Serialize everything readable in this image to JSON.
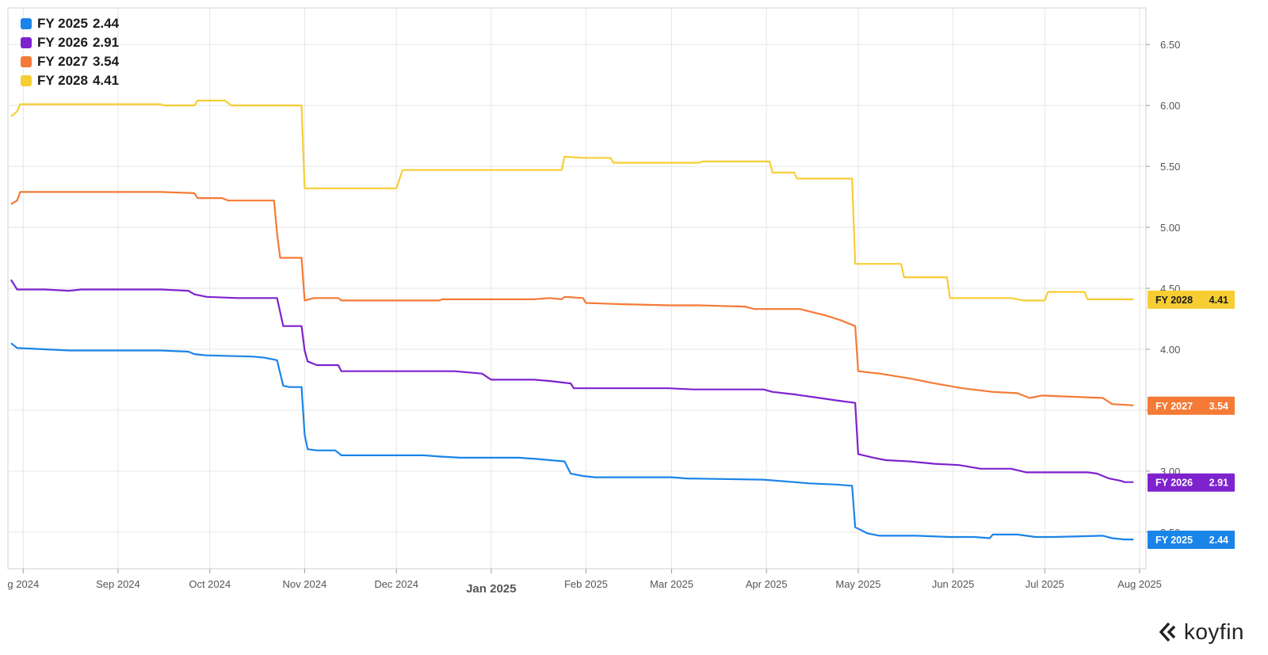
{
  "colors": {
    "FY 2025": "#1a84e8",
    "FY 2026": "#7e22ce",
    "FY 2027": "#f47a35",
    "FY 2028": "#f7cd34",
    "grid": "#e6e6e6",
    "axis_text": "#555555"
  },
  "brand": {
    "name": "koyfin",
    "icon": "koyfin-logo-icon"
  },
  "chart_data": {
    "type": "line",
    "title": "",
    "xlabel": "",
    "ylabel": "",
    "x_range": [
      "2024-07-27",
      "2025-08-01"
    ],
    "ylim": [
      2.2,
      6.8
    ],
    "y_ticks": [
      "2.50",
      "3.00",
      "3.50",
      "4.00",
      "4.50",
      "5.00",
      "5.50",
      "6.00",
      "6.50"
    ],
    "x_ticks": [
      {
        "label": "g 2024",
        "date": "2024-08-01"
      },
      {
        "label": "Sep 2024",
        "date": "2024-09-01"
      },
      {
        "label": "Oct 2024",
        "date": "2024-10-01"
      },
      {
        "label": "Nov 2024",
        "date": "2024-11-01"
      },
      {
        "label": "Dec 2024",
        "date": "2024-12-01"
      },
      {
        "label": "Jan 2025",
        "date": "2025-01-01"
      },
      {
        "label": "Feb 2025",
        "date": "2025-02-01"
      },
      {
        "label": "Mar 2025",
        "date": "2025-03-01"
      },
      {
        "label": "Apr 2025",
        "date": "2025-04-01"
      },
      {
        "label": "May 2025",
        "date": "2025-05-01"
      },
      {
        "label": "Jun 2025",
        "date": "2025-06-01"
      },
      {
        "label": "Jul 2025",
        "date": "2025-07-01"
      },
      {
        "label": "Aug 2025",
        "date": "2025-08-01"
      }
    ],
    "legend_position": "top-left",
    "grid": true,
    "series": [
      {
        "name": "FY 2025",
        "last": "2.44",
        "points": [
          [
            "2024-07-28",
            4.05
          ],
          [
            "2024-07-30",
            4.01
          ],
          [
            "2024-08-08",
            4.0
          ],
          [
            "2024-08-16",
            3.99
          ],
          [
            "2024-09-15",
            3.99
          ],
          [
            "2024-09-24",
            3.98
          ],
          [
            "2024-09-26",
            3.96
          ],
          [
            "2024-09-30",
            3.95
          ],
          [
            "2024-10-15",
            3.94
          ],
          [
            "2024-10-19",
            3.93
          ],
          [
            "2024-10-23",
            3.91
          ],
          [
            "2024-10-25",
            3.7
          ],
          [
            "2024-10-27",
            3.69
          ],
          [
            "2024-10-31",
            3.69
          ],
          [
            "2024-11-01",
            3.3
          ],
          [
            "2024-11-02",
            3.18
          ],
          [
            "2024-11-05",
            3.17
          ],
          [
            "2024-11-11",
            3.17
          ],
          [
            "2024-11-13",
            3.13
          ],
          [
            "2024-12-10",
            3.13
          ],
          [
            "2024-12-15",
            3.12
          ],
          [
            "2024-12-22",
            3.11
          ],
          [
            "2025-01-10",
            3.11
          ],
          [
            "2025-01-16",
            3.1
          ],
          [
            "2025-01-25",
            3.08
          ],
          [
            "2025-01-27",
            2.98
          ],
          [
            "2025-01-31",
            2.96
          ],
          [
            "2025-02-04",
            2.95
          ],
          [
            "2025-03-01",
            2.95
          ],
          [
            "2025-03-06",
            2.94
          ],
          [
            "2025-03-31",
            2.93
          ],
          [
            "2025-04-10",
            2.91
          ],
          [
            "2025-04-15",
            2.9
          ],
          [
            "2025-04-24",
            2.89
          ],
          [
            "2025-04-29",
            2.88
          ],
          [
            "2025-04-30",
            2.54
          ],
          [
            "2025-05-04",
            2.49
          ],
          [
            "2025-05-08",
            2.47
          ],
          [
            "2025-05-20",
            2.47
          ],
          [
            "2025-05-31",
            2.46
          ],
          [
            "2025-06-08",
            2.46
          ],
          [
            "2025-06-13",
            2.45
          ],
          [
            "2025-06-14",
            2.48
          ],
          [
            "2025-06-22",
            2.48
          ],
          [
            "2025-06-28",
            2.46
          ],
          [
            "2025-07-04",
            2.46
          ],
          [
            "2025-07-20",
            2.47
          ],
          [
            "2025-07-23",
            2.45
          ],
          [
            "2025-07-27",
            2.44
          ],
          [
            "2025-07-30",
            2.44
          ]
        ]
      },
      {
        "name": "FY 2026",
        "last": "2.91",
        "points": [
          [
            "2024-07-28",
            4.57
          ],
          [
            "2024-07-30",
            4.49
          ],
          [
            "2024-08-08",
            4.49
          ],
          [
            "2024-08-16",
            4.48
          ],
          [
            "2024-08-20",
            4.49
          ],
          [
            "2024-09-15",
            4.49
          ],
          [
            "2024-09-24",
            4.48
          ],
          [
            "2024-09-26",
            4.45
          ],
          [
            "2024-09-30",
            4.43
          ],
          [
            "2024-10-10",
            4.42
          ],
          [
            "2024-10-23",
            4.42
          ],
          [
            "2024-10-25",
            4.19
          ],
          [
            "2024-10-31",
            4.19
          ],
          [
            "2024-11-01",
            3.99
          ],
          [
            "2024-11-02",
            3.9
          ],
          [
            "2024-11-05",
            3.87
          ],
          [
            "2024-11-12",
            3.87
          ],
          [
            "2024-11-13",
            3.82
          ],
          [
            "2024-12-01",
            3.82
          ],
          [
            "2024-12-20",
            3.82
          ],
          [
            "2024-12-29",
            3.8
          ],
          [
            "2025-01-01",
            3.75
          ],
          [
            "2025-01-15",
            3.75
          ],
          [
            "2025-01-20",
            3.74
          ],
          [
            "2025-01-27",
            3.72
          ],
          [
            "2025-01-28",
            3.68
          ],
          [
            "2025-02-28",
            3.68
          ],
          [
            "2025-03-08",
            3.67
          ],
          [
            "2025-03-31",
            3.67
          ],
          [
            "2025-04-03",
            3.65
          ],
          [
            "2025-04-10",
            3.63
          ],
          [
            "2025-04-24",
            3.58
          ],
          [
            "2025-04-30",
            3.56
          ],
          [
            "2025-05-01",
            3.14
          ],
          [
            "2025-05-06",
            3.11
          ],
          [
            "2025-05-10",
            3.09
          ],
          [
            "2025-05-18",
            3.08
          ],
          [
            "2025-05-26",
            3.06
          ],
          [
            "2025-06-03",
            3.05
          ],
          [
            "2025-06-10",
            3.02
          ],
          [
            "2025-06-20",
            3.02
          ],
          [
            "2025-06-25",
            2.99
          ],
          [
            "2025-07-03",
            2.99
          ],
          [
            "2025-07-15",
            2.99
          ],
          [
            "2025-07-18",
            2.98
          ],
          [
            "2025-07-22",
            2.94
          ],
          [
            "2025-07-26",
            2.92
          ],
          [
            "2025-07-27",
            2.91
          ],
          [
            "2025-07-30",
            2.91
          ]
        ]
      },
      {
        "name": "FY 2027",
        "last": "3.54",
        "points": [
          [
            "2024-07-28",
            5.19
          ],
          [
            "2024-07-30",
            5.22
          ],
          [
            "2024-07-31",
            5.29
          ],
          [
            "2024-09-15",
            5.29
          ],
          [
            "2024-09-26",
            5.28
          ],
          [
            "2024-09-27",
            5.24
          ],
          [
            "2024-10-05",
            5.24
          ],
          [
            "2024-10-07",
            5.22
          ],
          [
            "2024-10-22",
            5.22
          ],
          [
            "2024-10-23",
            4.95
          ],
          [
            "2024-10-24",
            4.75
          ],
          [
            "2024-10-31",
            4.75
          ],
          [
            "2024-11-01",
            4.4
          ],
          [
            "2024-11-04",
            4.42
          ],
          [
            "2024-11-12",
            4.42
          ],
          [
            "2024-11-13",
            4.4
          ],
          [
            "2024-12-15",
            4.4
          ],
          [
            "2024-12-16",
            4.41
          ],
          [
            "2025-01-15",
            4.41
          ],
          [
            "2025-01-20",
            4.42
          ],
          [
            "2025-01-24",
            4.41
          ],
          [
            "2025-01-25",
            4.43
          ],
          [
            "2025-01-31",
            4.42
          ],
          [
            "2025-02-01",
            4.38
          ],
          [
            "2025-02-12",
            4.37
          ],
          [
            "2025-02-28",
            4.36
          ],
          [
            "2025-03-10",
            4.36
          ],
          [
            "2025-03-25",
            4.35
          ],
          [
            "2025-03-28",
            4.33
          ],
          [
            "2025-04-12",
            4.33
          ],
          [
            "2025-04-15",
            4.31
          ],
          [
            "2025-04-20",
            4.28
          ],
          [
            "2025-04-25",
            4.24
          ],
          [
            "2025-04-30",
            4.19
          ],
          [
            "2025-05-01",
            3.82
          ],
          [
            "2025-05-08",
            3.8
          ],
          [
            "2025-05-18",
            3.76
          ],
          [
            "2025-05-26",
            3.72
          ],
          [
            "2025-06-04",
            3.68
          ],
          [
            "2025-06-14",
            3.65
          ],
          [
            "2025-06-22",
            3.64
          ],
          [
            "2025-06-26",
            3.6
          ],
          [
            "2025-06-30",
            3.62
          ],
          [
            "2025-07-20",
            3.6
          ],
          [
            "2025-07-23",
            3.55
          ],
          [
            "2025-07-30",
            3.54
          ]
        ]
      },
      {
        "name": "FY 2028",
        "last": "4.41",
        "points": [
          [
            "2024-07-28",
            5.91
          ],
          [
            "2024-07-30",
            5.95
          ],
          [
            "2024-07-31",
            6.01
          ],
          [
            "2024-09-15",
            6.01
          ],
          [
            "2024-09-16",
            6.0
          ],
          [
            "2024-09-26",
            6.0
          ],
          [
            "2024-09-27",
            6.04
          ],
          [
            "2024-10-06",
            6.04
          ],
          [
            "2024-10-08",
            6.0
          ],
          [
            "2024-10-31",
            6.0
          ],
          [
            "2024-11-01",
            5.32
          ],
          [
            "2024-12-01",
            5.32
          ],
          [
            "2024-12-03",
            5.47
          ],
          [
            "2025-01-24",
            5.47
          ],
          [
            "2025-01-25",
            5.58
          ],
          [
            "2025-01-31",
            5.57
          ],
          [
            "2025-02-09",
            5.57
          ],
          [
            "2025-02-10",
            5.53
          ],
          [
            "2025-03-10",
            5.53
          ],
          [
            "2025-03-11",
            5.54
          ],
          [
            "2025-04-02",
            5.54
          ],
          [
            "2025-04-03",
            5.45
          ],
          [
            "2025-04-10",
            5.45
          ],
          [
            "2025-04-11",
            5.4
          ],
          [
            "2025-04-29",
            5.4
          ],
          [
            "2025-04-30",
            4.7
          ],
          [
            "2025-05-15",
            4.7
          ],
          [
            "2025-05-16",
            4.59
          ],
          [
            "2025-05-30",
            4.59
          ],
          [
            "2025-05-31",
            4.42
          ],
          [
            "2025-06-20",
            4.42
          ],
          [
            "2025-06-24",
            4.4
          ],
          [
            "2025-07-01",
            4.4
          ],
          [
            "2025-07-02",
            4.47
          ],
          [
            "2025-07-14",
            4.47
          ],
          [
            "2025-07-15",
            4.41
          ],
          [
            "2025-07-30",
            4.41
          ]
        ]
      }
    ]
  }
}
